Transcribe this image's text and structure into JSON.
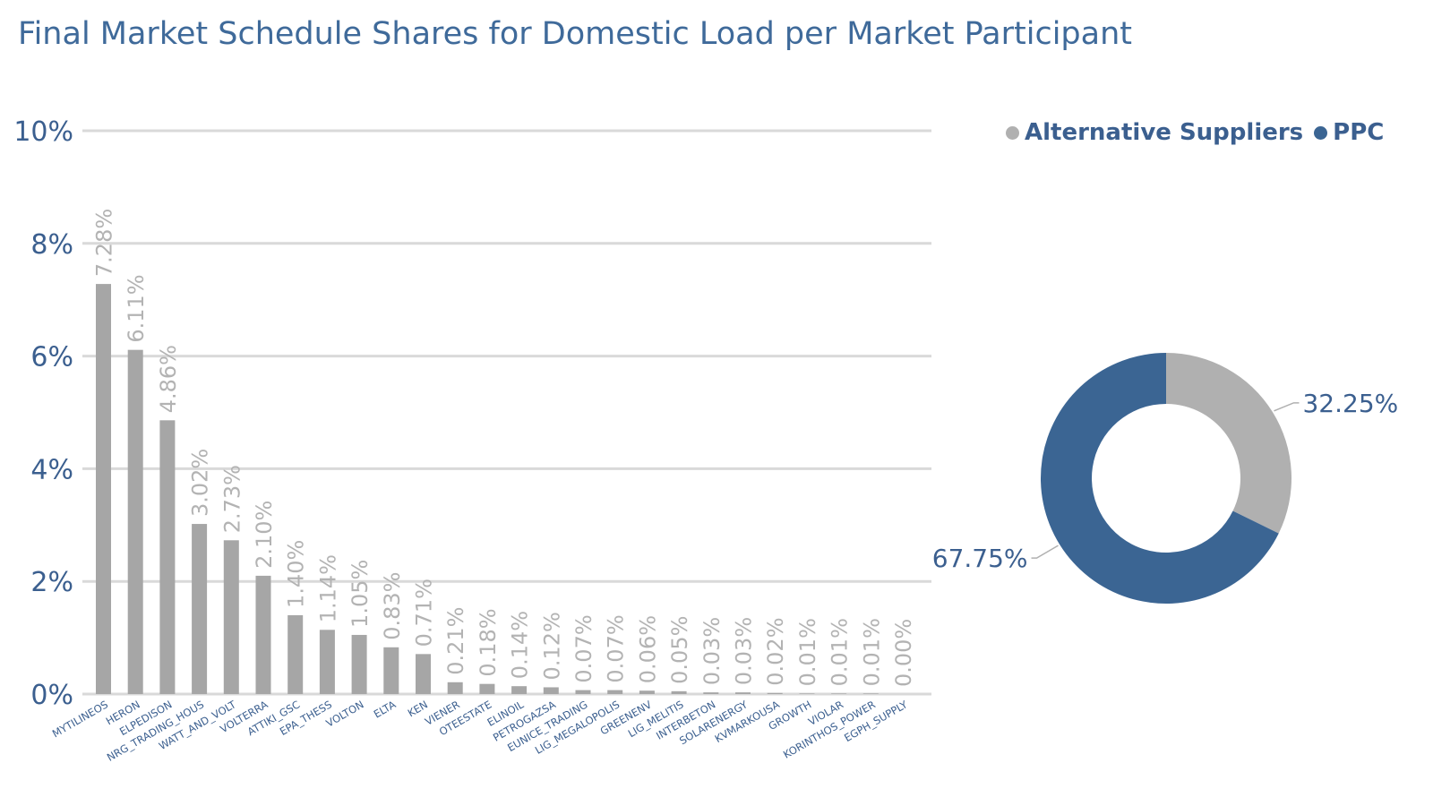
{
  "title": "Final Market Schedule Shares for Domestic Load per Market Participant",
  "colors": {
    "bar": "#a6a6a6",
    "ppc": "#3b6593",
    "alternative": "#b0b0b0",
    "axis_text": "#3b5f8f",
    "grid": "#d9d9d9",
    "data_label": "#b3b3b3"
  },
  "chart_data": [
    {
      "type": "bar",
      "categories": [
        "MYTILINEOS",
        "HERON",
        "ELPEDISON",
        "NRG_TRADING_HOUS",
        "WATT_AND_VOLT",
        "VOLTERRA",
        "ATTIKI_GSC",
        "EPA_THESS",
        "VOLTON",
        "ELTA",
        "KEN",
        "VIENER",
        "OTEESTATE",
        "ELINOIL",
        "PETROGAZSA",
        "EUNICE_TRADING",
        "LIG_MEGALOPOLIS",
        "GREENENV",
        "LIG_MELITIS",
        "INTERBETON",
        "SOLARENERGY",
        "KVMARKOUSA",
        "GROWTH",
        "VIOLAR",
        "KORINTHOS_POWER",
        "EGPH_SUPPLY"
      ],
      "values": [
        7.28,
        6.11,
        4.86,
        3.02,
        2.73,
        2.1,
        1.4,
        1.14,
        1.05,
        0.83,
        0.71,
        0.21,
        0.18,
        0.14,
        0.12,
        0.07,
        0.07,
        0.06,
        0.05,
        0.03,
        0.03,
        0.02,
        0.01,
        0.01,
        0.01,
        0.0
      ],
      "data_labels": [
        "7.28%",
        "6.11%",
        "4.86%",
        "3.02%",
        "2.73%",
        "2.10%",
        "1.40%",
        "1.14%",
        "1.05%",
        "0.83%",
        "0.71%",
        "0.21%",
        "0.18%",
        "0.14%",
        "0.12%",
        "0.07%",
        "0.07%",
        "0.06%",
        "0.05%",
        "0.03%",
        "0.03%",
        "0.02%",
        "0.01%",
        "0.01%",
        "0.01%",
        "0.00%"
      ],
      "yticks": [
        "0%",
        "2%",
        "4%",
        "6%",
        "8%",
        "10%"
      ],
      "ylim": [
        0,
        10
      ],
      "grid": true
    },
    {
      "type": "pie",
      "donut": true,
      "slices": [
        {
          "name": "Alternative Suppliers",
          "value": 32.25,
          "label": "32.25%",
          "color": "#b0b0b0"
        },
        {
          "name": "PPC",
          "value": 67.75,
          "label": "67.75%",
          "color": "#3b6593"
        }
      ],
      "legend_position": "top"
    }
  ]
}
